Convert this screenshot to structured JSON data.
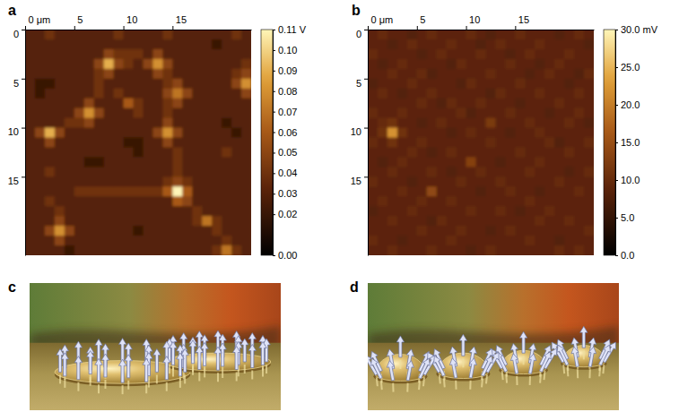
{
  "chart_data": [
    {
      "type": "heatmap",
      "title": "a",
      "xlim": [
        0,
        23
      ],
      "xticks": [
        {
          "value": 0,
          "label": "0 μm"
        },
        5,
        10,
        15
      ],
      "ylim": [
        0,
        23
      ],
      "yticks": [
        0,
        5,
        10,
        15
      ],
      "colorbar": {
        "range": [
          0,
          0.11
        ],
        "ticks": [
          {
            "value": 0,
            "label": "0.00"
          },
          0.02,
          0.03,
          0.04,
          0.05,
          0.06,
          0.07,
          0.08,
          0.09,
          {
            "value": 0.1,
            "label": "0.10"
          },
          {
            "value": 0.11,
            "label": "0.11 V"
          }
        ]
      },
      "cells": [
        [
          0.03,
          0.03,
          0.04,
          0.03,
          0.03,
          0.03,
          0.03,
          0.03,
          0.03,
          0.04,
          0.03,
          0.03,
          0.03,
          0.03,
          0.04,
          0.03,
          0.03,
          0.03,
          0.03,
          0.03,
          0.03,
          0.04,
          0.03
        ],
        [
          0.03,
          0.03,
          0.03,
          0.03,
          0.03,
          0.03,
          0.03,
          0.03,
          0.03,
          0.03,
          0.03,
          0.03,
          0.03,
          0.03,
          0.03,
          0.03,
          0.03,
          0.03,
          0.03,
          0.02,
          0.03,
          0.03,
          0.03
        ],
        [
          0.03,
          0.03,
          0.03,
          0.03,
          0.03,
          0.03,
          0.03,
          0.03,
          0.05,
          0.04,
          0.04,
          0.04,
          0.03,
          0.05,
          0.03,
          0.03,
          0.03,
          0.03,
          0.03,
          0.03,
          0.03,
          0.03,
          0.03
        ],
        [
          0.03,
          0.03,
          0.03,
          0.03,
          0.03,
          0.03,
          0.03,
          0.05,
          0.09,
          0.05,
          0.04,
          0.03,
          0.05,
          0.08,
          0.05,
          0.03,
          0.03,
          0.03,
          0.03,
          0.03,
          0.03,
          0.03,
          0.04
        ],
        [
          0.03,
          0.03,
          0.03,
          0.03,
          0.03,
          0.03,
          0.03,
          0.04,
          0.05,
          0.03,
          0.03,
          0.03,
          0.03,
          0.05,
          0.04,
          0.03,
          0.03,
          0.03,
          0.03,
          0.03,
          0.03,
          0.04,
          0.05
        ],
        [
          0.03,
          0.02,
          0.02,
          0.03,
          0.03,
          0.03,
          0.03,
          0.04,
          0.03,
          0.03,
          0.03,
          0.03,
          0.03,
          0.03,
          0.04,
          0.05,
          0.03,
          0.03,
          0.03,
          0.03,
          0.03,
          0.05,
          0.08
        ],
        [
          0.03,
          0.02,
          0.03,
          0.03,
          0.03,
          0.03,
          0.03,
          0.04,
          0.03,
          0.04,
          0.03,
          0.03,
          0.03,
          0.03,
          0.05,
          0.07,
          0.05,
          0.03,
          0.03,
          0.03,
          0.03,
          0.03,
          0.05
        ],
        [
          0.03,
          0.03,
          0.03,
          0.03,
          0.03,
          0.03,
          0.05,
          0.03,
          0.03,
          0.03,
          0.06,
          0.04,
          0.03,
          0.03,
          0.04,
          0.05,
          0.03,
          0.03,
          0.03,
          0.03,
          0.03,
          0.03,
          0.03
        ],
        [
          0.03,
          0.03,
          0.03,
          0.03,
          0.03,
          0.05,
          0.08,
          0.05,
          0.03,
          0.03,
          0.03,
          0.04,
          0.03,
          0.03,
          0.04,
          0.03,
          0.03,
          0.03,
          0.03,
          0.03,
          0.03,
          0.03,
          0.03
        ],
        [
          0.03,
          0.03,
          0.03,
          0.03,
          0.04,
          0.04,
          0.05,
          0.03,
          0.03,
          0.03,
          0.03,
          0.03,
          0.03,
          0.03,
          0.05,
          0.03,
          0.03,
          0.03,
          0.03,
          0.03,
          0.02,
          0.03,
          0.03
        ],
        [
          0.03,
          0.05,
          0.09,
          0.05,
          0.03,
          0.03,
          0.03,
          0.03,
          0.03,
          0.03,
          0.03,
          0.03,
          0.03,
          0.05,
          0.08,
          0.05,
          0.03,
          0.03,
          0.03,
          0.03,
          0.03,
          0.02,
          0.03
        ],
        [
          0.03,
          0.03,
          0.05,
          0.03,
          0.03,
          0.03,
          0.03,
          0.03,
          0.03,
          0.03,
          0.02,
          0.02,
          0.03,
          0.03,
          0.05,
          0.03,
          0.03,
          0.03,
          0.03,
          0.03,
          0.03,
          0.03,
          0.03
        ],
        [
          0.03,
          0.03,
          0.03,
          0.03,
          0.03,
          0.03,
          0.03,
          0.03,
          0.03,
          0.03,
          0.03,
          0.02,
          0.03,
          0.03,
          0.03,
          0.04,
          0.03,
          0.03,
          0.03,
          0.03,
          0.04,
          0.03,
          0.03
        ],
        [
          0.03,
          0.03,
          0.03,
          0.03,
          0.03,
          0.03,
          0.02,
          0.02,
          0.03,
          0.03,
          0.03,
          0.03,
          0.03,
          0.03,
          0.03,
          0.04,
          0.03,
          0.03,
          0.03,
          0.03,
          0.03,
          0.03,
          0.03
        ],
        [
          0.03,
          0.03,
          0.04,
          0.03,
          0.03,
          0.03,
          0.03,
          0.03,
          0.03,
          0.03,
          0.03,
          0.03,
          0.03,
          0.03,
          0.03,
          0.04,
          0.03,
          0.03,
          0.03,
          0.03,
          0.03,
          0.03,
          0.03
        ],
        [
          0.03,
          0.03,
          0.03,
          0.03,
          0.03,
          0.03,
          0.03,
          0.03,
          0.03,
          0.03,
          0.03,
          0.03,
          0.03,
          0.03,
          0.04,
          0.05,
          0.04,
          0.03,
          0.03,
          0.03,
          0.03,
          0.03,
          0.03
        ],
        [
          0.03,
          0.03,
          0.03,
          0.03,
          0.03,
          0.04,
          0.04,
          0.04,
          0.04,
          0.04,
          0.04,
          0.04,
          0.04,
          0.04,
          0.06,
          0.11,
          0.06,
          0.03,
          0.03,
          0.03,
          0.03,
          0.03,
          0.03
        ],
        [
          0.03,
          0.03,
          0.04,
          0.03,
          0.03,
          0.03,
          0.03,
          0.03,
          0.03,
          0.03,
          0.03,
          0.03,
          0.03,
          0.03,
          0.03,
          0.06,
          0.05,
          0.03,
          0.03,
          0.03,
          0.03,
          0.03,
          0.03
        ],
        [
          0.03,
          0.03,
          0.03,
          0.04,
          0.03,
          0.03,
          0.03,
          0.03,
          0.03,
          0.03,
          0.03,
          0.03,
          0.03,
          0.03,
          0.03,
          0.03,
          0.03,
          0.04,
          0.03,
          0.03,
          0.03,
          0.03,
          0.03
        ],
        [
          0.03,
          0.03,
          0.03,
          0.05,
          0.03,
          0.03,
          0.03,
          0.03,
          0.03,
          0.03,
          0.03,
          0.03,
          0.03,
          0.03,
          0.03,
          0.03,
          0.03,
          0.04,
          0.07,
          0.04,
          0.03,
          0.03,
          0.03
        ],
        [
          0.03,
          0.03,
          0.05,
          0.08,
          0.05,
          0.03,
          0.03,
          0.03,
          0.03,
          0.03,
          0.03,
          0.02,
          0.03,
          0.03,
          0.03,
          0.03,
          0.03,
          0.03,
          0.03,
          0.04,
          0.03,
          0.03,
          0.03
        ],
        [
          0.03,
          0.03,
          0.03,
          0.05,
          0.03,
          0.03,
          0.03,
          0.03,
          0.03,
          0.03,
          0.03,
          0.03,
          0.03,
          0.03,
          0.03,
          0.03,
          0.03,
          0.03,
          0.03,
          0.03,
          0.04,
          0.03,
          0.03
        ],
        [
          0.03,
          0.03,
          0.03,
          0.03,
          0.02,
          0.03,
          0.03,
          0.03,
          0.03,
          0.03,
          0.03,
          0.03,
          0.03,
          0.03,
          0.03,
          0.03,
          0.03,
          0.03,
          0.03,
          0.04,
          0.07,
          0.04,
          0.03
        ]
      ]
    },
    {
      "type": "heatmap",
      "title": "b",
      "xlim": [
        0,
        23
      ],
      "xticks": [
        {
          "value": 0,
          "label": "0 μm"
        },
        5,
        10,
        15
      ],
      "ylim": [
        0,
        23
      ],
      "yticks": [
        0,
        5,
        10,
        15
      ],
      "colorbar": {
        "range": [
          0,
          30
        ],
        "ticks": [
          {
            "value": 0,
            "label": "0.0"
          },
          {
            "value": 5,
            "label": "5.0"
          },
          {
            "value": 10,
            "label": "10.0"
          },
          {
            "value": 15,
            "label": "15.0"
          },
          {
            "value": 20,
            "label": "20.0"
          },
          {
            "value": 25,
            "label": "25.0"
          },
          {
            "value": 30,
            "label": "30.0 mV"
          }
        ]
      },
      "cells": [
        [
          9,
          10,
          9,
          9,
          8,
          9,
          10,
          9,
          9,
          9,
          10,
          9,
          8,
          9,
          9,
          10,
          9,
          9,
          9,
          8,
          9,
          10,
          9
        ],
        [
          9,
          9,
          8,
          9,
          10,
          9,
          9,
          9,
          10,
          9,
          9,
          8,
          9,
          10,
          9,
          9,
          9,
          10,
          9,
          9,
          9,
          9,
          8
        ],
        [
          10,
          9,
          9,
          9,
          9,
          8,
          9,
          10,
          9,
          9,
          9,
          10,
          9,
          9,
          8,
          9,
          10,
          9,
          9,
          9,
          10,
          9,
          9
        ],
        [
          9,
          8,
          9,
          10,
          9,
          9,
          9,
          9,
          8,
          10,
          9,
          9,
          9,
          9,
          10,
          9,
          9,
          8,
          9,
          10,
          9,
          9,
          9
        ],
        [
          9,
          9,
          10,
          9,
          9,
          10,
          8,
          9,
          9,
          9,
          9,
          9,
          10,
          9,
          9,
          9,
          8,
          9,
          10,
          9,
          9,
          8,
          10
        ],
        [
          8,
          9,
          9,
          9,
          10,
          9,
          9,
          9,
          9,
          8,
          10,
          9,
          9,
          9,
          9,
          10,
          9,
          9,
          9,
          9,
          8,
          9,
          9
        ],
        [
          9,
          10,
          9,
          8,
          9,
          9,
          10,
          9,
          9,
          9,
          9,
          9,
          8,
          10,
          9,
          9,
          9,
          10,
          9,
          9,
          9,
          10,
          9
        ],
        [
          9,
          9,
          9,
          9,
          9,
          10,
          9,
          8,
          10,
          9,
          9,
          10,
          9,
          9,
          9,
          8,
          9,
          9,
          9,
          10,
          9,
          9,
          9
        ],
        [
          10,
          9,
          9,
          10,
          9,
          9,
          9,
          9,
          9,
          10,
          8,
          9,
          9,
          9,
          10,
          9,
          9,
          9,
          8,
          9,
          9,
          10,
          9
        ],
        [
          9,
          10,
          11,
          9,
          9,
          8,
          9,
          10,
          9,
          9,
          9,
          9,
          12,
          9,
          9,
          9,
          10,
          9,
          9,
          9,
          10,
          9,
          8
        ],
        [
          9,
          11,
          22,
          11,
          9,
          9,
          9,
          9,
          8,
          9,
          10,
          9,
          9,
          9,
          8,
          9,
          9,
          10,
          9,
          9,
          9,
          9,
          9
        ],
        [
          10,
          9,
          11,
          9,
          9,
          10,
          9,
          9,
          9,
          9,
          9,
          9,
          10,
          9,
          9,
          9,
          9,
          9,
          10,
          8,
          9,
          9,
          10
        ],
        [
          9,
          9,
          9,
          9,
          10,
          9,
          8,
          9,
          10,
          9,
          9,
          9,
          9,
          9,
          9,
          10,
          9,
          9,
          9,
          9,
          10,
          9,
          9
        ],
        [
          9,
          8,
          9,
          10,
          9,
          9,
          9,
          9,
          9,
          9,
          13,
          9,
          9,
          8,
          9,
          9,
          9,
          10,
          9,
          9,
          9,
          9,
          9
        ],
        [
          9,
          9,
          10,
          9,
          9,
          9,
          10,
          9,
          8,
          9,
          9,
          10,
          9,
          9,
          9,
          9,
          10,
          9,
          9,
          9,
          8,
          9,
          10
        ],
        [
          10,
          9,
          9,
          9,
          8,
          9,
          9,
          9,
          9,
          10,
          9,
          9,
          9,
          10,
          9,
          9,
          9,
          9,
          9,
          10,
          9,
          9,
          9
        ],
        [
          9,
          9,
          9,
          10,
          9,
          9,
          14,
          9,
          9,
          9,
          9,
          8,
          9,
          9,
          10,
          9,
          9,
          8,
          9,
          9,
          9,
          10,
          9
        ],
        [
          9,
          10,
          9,
          9,
          9,
          10,
          9,
          9,
          10,
          9,
          9,
          9,
          9,
          9,
          9,
          9,
          10,
          9,
          9,
          9,
          9,
          9,
          9
        ],
        [
          8,
          9,
          9,
          9,
          10,
          9,
          9,
          9,
          9,
          9,
          10,
          9,
          9,
          10,
          9,
          8,
          9,
          9,
          10,
          9,
          9,
          9,
          9
        ],
        [
          9,
          9,
          10,
          9,
          9,
          9,
          8,
          10,
          9,
          9,
          9,
          9,
          9,
          9,
          9,
          9,
          9,
          10,
          9,
          9,
          10,
          9,
          9
        ],
        [
          9,
          9,
          9,
          9,
          9,
          10,
          9,
          9,
          9,
          10,
          9,
          9,
          8,
          9,
          10,
          9,
          9,
          9,
          9,
          9,
          9,
          9,
          10
        ],
        [
          10,
          9,
          9,
          8,
          9,
          9,
          9,
          9,
          10,
          9,
          9,
          9,
          9,
          9,
          9,
          9,
          10,
          9,
          9,
          8,
          9,
          9,
          9
        ],
        [
          9,
          9,
          10,
          9,
          9,
          9,
          10,
          9,
          9,
          9,
          8,
          9,
          10,
          9,
          9,
          9,
          9,
          9,
          9,
          10,
          9,
          10,
          9
        ]
      ]
    }
  ],
  "illustrations": [
    {
      "title": "c"
    },
    {
      "title": "d"
    }
  ]
}
